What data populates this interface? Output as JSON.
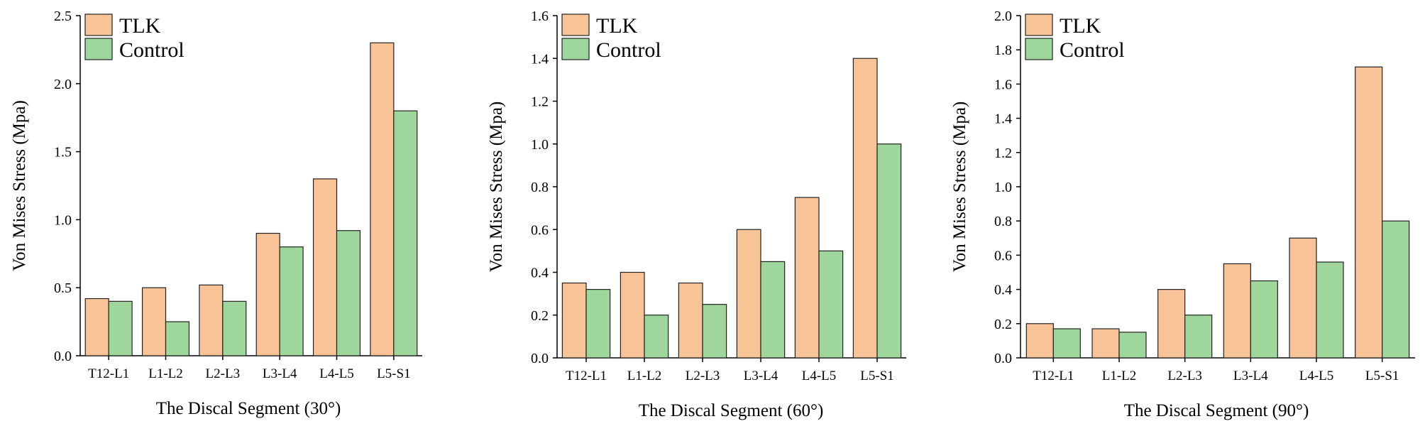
{
  "colors": {
    "tlk": "#f9c398",
    "control": "#9ed69b",
    "bar_stroke": "#222222"
  },
  "chart_data": [
    {
      "type": "bar",
      "title": "",
      "xlabel": "The Discal Segment (30°)",
      "ylabel": "Von Mises Stress (Mpa)",
      "ylim": [
        0,
        2.5
      ],
      "yticks": [
        "0.0",
        "0.5",
        "1.0",
        "1.5",
        "2.0",
        "2.5"
      ],
      "ytick_values": [
        0,
        0.5,
        1.0,
        1.5,
        2.0,
        2.5
      ],
      "categories": [
        "T12-L1",
        "L1-L2",
        "L2-L3",
        "L3-L4",
        "L4-L5",
        "L5-S1"
      ],
      "legend_position": "top-left",
      "grid": false,
      "series": [
        {
          "name": "TLK",
          "values": [
            0.42,
            0.5,
            0.52,
            0.9,
            1.3,
            2.3
          ]
        },
        {
          "name": "Control",
          "values": [
            0.4,
            0.25,
            0.4,
            0.8,
            0.92,
            1.8
          ]
        }
      ]
    },
    {
      "type": "bar",
      "title": "",
      "xlabel": "The Discal Segment (60°)",
      "ylabel": "Von Mises Stress (Mpa)",
      "ylim": [
        0,
        1.6
      ],
      "yticks": [
        "0.0",
        "0.2",
        "0.4",
        "0.6",
        "0.8",
        "1.0",
        "1.2",
        "1.4",
        "1.6"
      ],
      "ytick_values": [
        0,
        0.2,
        0.4,
        0.6,
        0.8,
        1.0,
        1.2,
        1.4,
        1.6
      ],
      "categories": [
        "T12-L1",
        "L1-L2",
        "L2-L3",
        "L3-L4",
        "L4-L5",
        "L5-S1"
      ],
      "legend_position": "top-left",
      "grid": false,
      "series": [
        {
          "name": "TLK",
          "values": [
            0.35,
            0.4,
            0.35,
            0.6,
            0.75,
            1.4
          ]
        },
        {
          "name": "Control",
          "values": [
            0.32,
            0.2,
            0.25,
            0.45,
            0.5,
            1.0
          ]
        }
      ]
    },
    {
      "type": "bar",
      "title": "",
      "xlabel": "The Discal Segment (90°)",
      "ylabel": "Von Mises Stress (Mpa)",
      "ylim": [
        0,
        2.0
      ],
      "yticks": [
        "0.0",
        "0.2",
        "0.4",
        "0.6",
        "0.8",
        "1.0",
        "1.2",
        "1.4",
        "1.6",
        "1.8",
        "2.0"
      ],
      "ytick_values": [
        0,
        0.2,
        0.4,
        0.6,
        0.8,
        1.0,
        1.2,
        1.4,
        1.6,
        1.8,
        2.0
      ],
      "categories": [
        "T12-L1",
        "L1-L2",
        "L2-L3",
        "L3-L4",
        "L4-L5",
        "L5-S1"
      ],
      "legend_position": "top-left",
      "grid": false,
      "series": [
        {
          "name": "TLK",
          "values": [
            0.2,
            0.17,
            0.4,
            0.55,
            0.7,
            1.7
          ]
        },
        {
          "name": "Control",
          "values": [
            0.17,
            0.15,
            0.25,
            0.45,
            0.56,
            0.8
          ]
        }
      ]
    }
  ]
}
